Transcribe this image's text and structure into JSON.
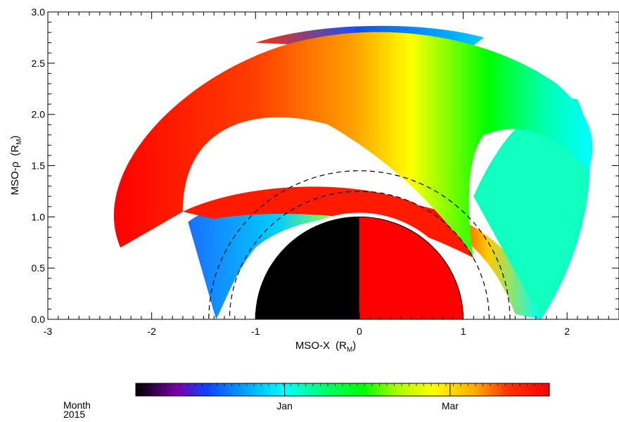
{
  "chart_data": {
    "type": "scatter",
    "xlabel": "MSO-X",
    "xlabel_unit": "R",
    "xlabel_unit_sub": "M",
    "ylabel": "MSO-ρ",
    "ylabel_unit": "R",
    "ylabel_unit_sub": "M",
    "xlim": [
      -3,
      2.5
    ],
    "ylim": [
      0,
      3
    ],
    "xticks": [
      -3,
      -2,
      -1,
      0,
      1,
      2
    ],
    "xtick_labels": [
      "-3",
      "-2",
      "-1",
      "0",
      "1",
      "2"
    ],
    "yticks": [
      0,
      0.5,
      1,
      1.5,
      2,
      2.5,
      3
    ],
    "ytick_labels": [
      "0.0",
      "0.5",
      "1.0",
      "1.5",
      "2.0",
      "2.5",
      "3.0"
    ],
    "grid": false,
    "planet": {
      "radius": 1,
      "night_side_color": "#000000",
      "day_side_color": "#ff0000"
    },
    "reference_boundaries": [
      {
        "style": "dashed",
        "x_subsolar": 1.45,
        "x_terminator_intercept": -1.45,
        "rho_max": 1.45
      },
      {
        "style": "dashed",
        "x_subsolar": 1.25,
        "x_terminator_intercept": -1.25,
        "rho_max": 1.25
      }
    ],
    "orbit_tracks": {
      "color_by": "time",
      "bands": [
        {
          "name": "outer",
          "rho_min": 1.3,
          "rho_max": 2.9,
          "x_range": [
            -2.45,
            2.3
          ]
        },
        {
          "name": "inner",
          "rho_min": 0.0,
          "rho_max": 1.28,
          "x_range": [
            -1.65,
            1.75
          ]
        }
      ]
    },
    "colorbar": {
      "title_line1": "Month",
      "title_line2": "2015",
      "tick_labels": [
        "Jan",
        "Mar"
      ],
      "tick_positions": [
        0.36,
        0.76
      ],
      "colormap": [
        "#000000",
        "#7a00a8",
        "#0033ff",
        "#00aaff",
        "#00ffff",
        "#00ff66",
        "#00ff00",
        "#aaff00",
        "#ffff00",
        "#ffaa00",
        "#ff3300",
        "#ff0000"
      ]
    }
  }
}
